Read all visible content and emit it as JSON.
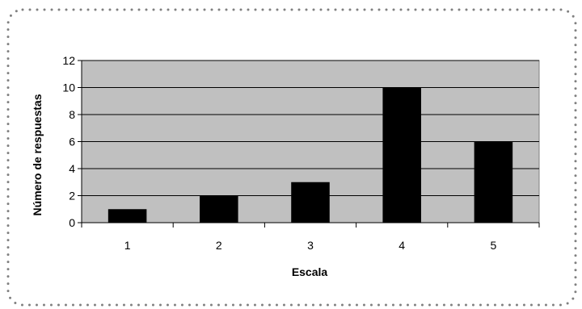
{
  "chart_data": {
    "type": "bar",
    "categories": [
      "1",
      "2",
      "3",
      "4",
      "5"
    ],
    "values": [
      1,
      2,
      3,
      10,
      6
    ],
    "xlabel": "Escala",
    "ylabel": "Número de respuestas",
    "ylim": [
      0,
      12
    ],
    "yticks": [
      "0",
      "2",
      "4",
      "6",
      "8",
      "10",
      "12"
    ],
    "grid": true,
    "legend": "none",
    "colors": {
      "bar": "#000000",
      "plot_background": "#c0c0c0",
      "gridline": "#000000",
      "border": "#808080"
    }
  }
}
